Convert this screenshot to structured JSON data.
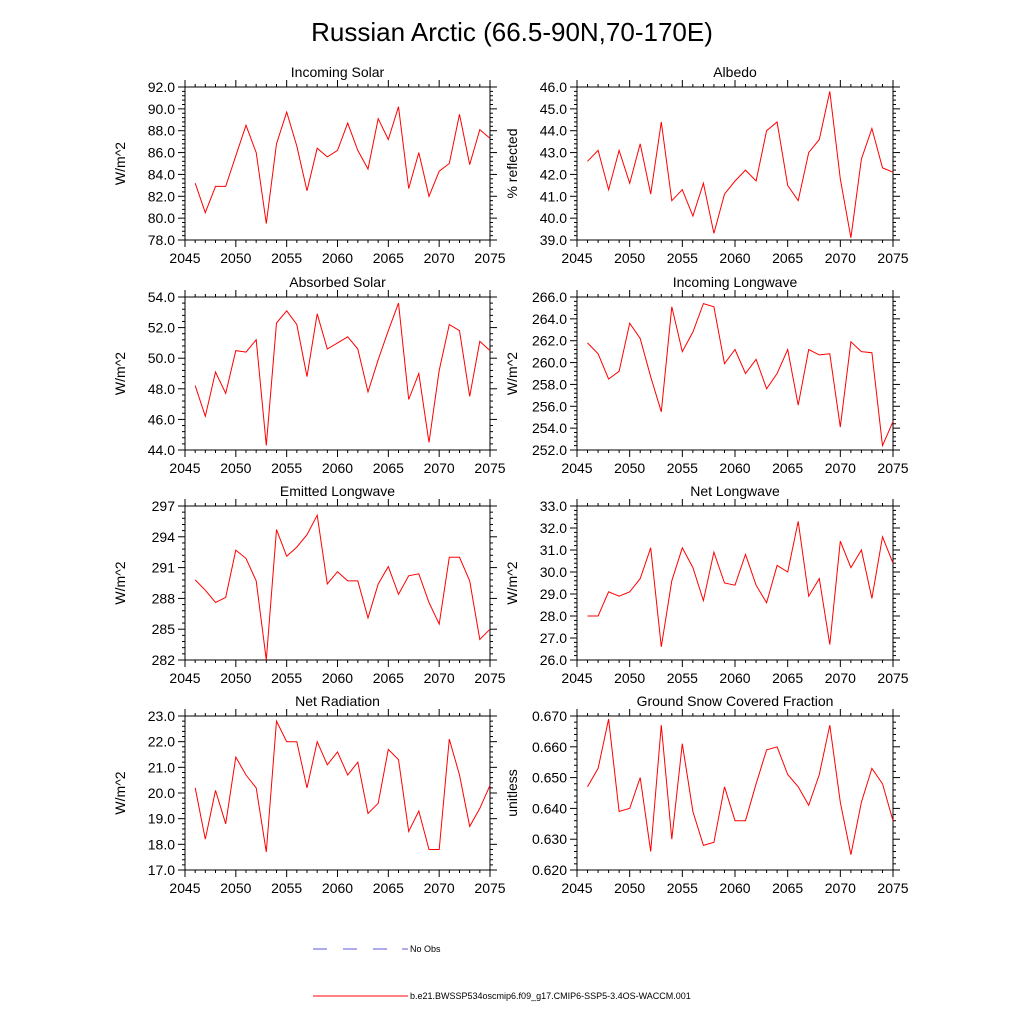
{
  "title": "Russian Arctic (66.5-90N,70-170E)",
  "colors": {
    "series": "#ff0000",
    "no_obs": "#5a5adc"
  },
  "years": [
    2046,
    2047,
    2048,
    2049,
    2050,
    2051,
    2052,
    2053,
    2054,
    2055,
    2056,
    2057,
    2058,
    2059,
    2060,
    2061,
    2062,
    2063,
    2064,
    2065,
    2066,
    2067,
    2068,
    2069,
    2070,
    2071,
    2072,
    2073,
    2074,
    2075
  ],
  "chart_data": [
    {
      "type": "line",
      "title": "Incoming Solar",
      "ylabel": "W/m^2",
      "xlim": [
        2045,
        2075
      ],
      "ylim": [
        78,
        92
      ],
      "yticks": [
        "78.0",
        "80.0",
        "82.0",
        "84.0",
        "86.0",
        "88.0",
        "90.0",
        "92.0"
      ],
      "xticks": [
        "2045",
        "2050",
        "2055",
        "2060",
        "2065",
        "2070",
        "2075"
      ],
      "values": [
        83.2,
        80.5,
        82.9,
        82.9,
        85.7,
        88.5,
        86.0,
        79.5,
        86.8,
        89.7,
        86.6,
        82.5,
        86.4,
        85.6,
        86.2,
        88.7,
        86.2,
        84.5,
        89.1,
        87.2,
        90.2,
        82.7,
        86.0,
        82.0,
        84.3,
        85.0,
        89.5,
        84.9,
        88.1,
        87.3
      ]
    },
    {
      "type": "line",
      "title": "Albedo",
      "ylabel": "% reflected",
      "xlim": [
        2045,
        2075
      ],
      "ylim": [
        39,
        46
      ],
      "yticks": [
        "39.0",
        "40.0",
        "41.0",
        "42.0",
        "43.0",
        "44.0",
        "45.0",
        "46.0"
      ],
      "xticks": [
        "2045",
        "2050",
        "2055",
        "2060",
        "2065",
        "2070",
        "2075"
      ],
      "values": [
        42.6,
        43.1,
        41.3,
        43.1,
        41.6,
        43.4,
        41.1,
        44.4,
        40.8,
        41.3,
        40.1,
        41.6,
        39.3,
        41.1,
        41.7,
        42.2,
        41.7,
        44.0,
        44.4,
        41.5,
        40.8,
        43.0,
        43.6,
        45.8,
        41.8,
        39.1,
        42.7,
        44.1,
        42.3,
        42.1
      ]
    },
    {
      "type": "line",
      "title": "Absorbed Solar",
      "ylabel": "W/m^2",
      "xlim": [
        2045,
        2075
      ],
      "ylim": [
        44,
        54
      ],
      "yticks": [
        "44.0",
        "46.0",
        "48.0",
        "50.0",
        "52.0",
        "54.0"
      ],
      "xticks": [
        "2045",
        "2050",
        "2055",
        "2060",
        "2065",
        "2070",
        "2075"
      ],
      "values": [
        48.2,
        46.2,
        49.1,
        47.7,
        50.5,
        50.4,
        51.2,
        44.3,
        52.3,
        53.1,
        52.2,
        48.8,
        52.9,
        50.6,
        51.0,
        51.4,
        50.6,
        47.8,
        49.9,
        51.8,
        53.6,
        47.3,
        49.0,
        44.5,
        49.2,
        52.2,
        51.8,
        47.5,
        51.1,
        50.5
      ]
    },
    {
      "type": "line",
      "title": "Incoming Longwave",
      "ylabel": "W/m^2",
      "xlim": [
        2045,
        2075
      ],
      "ylim": [
        252,
        266
      ],
      "yticks": [
        "252.0",
        "254.0",
        "256.0",
        "258.0",
        "260.0",
        "262.0",
        "264.0",
        "266.0"
      ],
      "xticks": [
        "2045",
        "2050",
        "2055",
        "2060",
        "2065",
        "2070",
        "2075"
      ],
      "values": [
        261.8,
        260.8,
        258.5,
        259.2,
        263.6,
        262.2,
        258.7,
        255.5,
        265.1,
        261.0,
        262.8,
        265.4,
        265.1,
        259.9,
        261.2,
        259.0,
        260.3,
        257.6,
        259.0,
        261.2,
        256.1,
        261.2,
        260.7,
        260.8,
        254.1,
        261.9,
        261.0,
        260.9,
        252.4,
        254.6
      ]
    },
    {
      "type": "line",
      "title": "Emitted Longwave",
      "ylabel": "W/m^2",
      "xlim": [
        2045,
        2075
      ],
      "ylim": [
        282,
        297
      ],
      "yticks": [
        "282",
        "285",
        "288",
        "291",
        "294",
        "297"
      ],
      "xticks": [
        "2045",
        "2050",
        "2055",
        "2060",
        "2065",
        "2070",
        "2075"
      ],
      "values": [
        289.8,
        288.8,
        287.6,
        288.1,
        292.7,
        291.9,
        289.7,
        282.0,
        294.7,
        292.1,
        293.0,
        294.2,
        296.1,
        289.4,
        290.6,
        289.7,
        289.7,
        286.1,
        289.4,
        291.1,
        288.4,
        290.2,
        290.4,
        287.6,
        285.5,
        292.0,
        292.0,
        289.7,
        284.0,
        285.0
      ]
    },
    {
      "type": "line",
      "title": "Net Longwave",
      "ylabel": "W/m^2",
      "xlim": [
        2045,
        2075
      ],
      "ylim": [
        26,
        33
      ],
      "yticks": [
        "26.0",
        "27.0",
        "28.0",
        "29.0",
        "30.0",
        "31.0",
        "32.0",
        "33.0"
      ],
      "xticks": [
        "2045",
        "2050",
        "2055",
        "2060",
        "2065",
        "2070",
        "2075"
      ],
      "values": [
        28.0,
        28.0,
        29.1,
        28.9,
        29.1,
        29.7,
        31.1,
        26.6,
        29.6,
        31.1,
        30.2,
        28.7,
        30.9,
        29.5,
        29.4,
        30.8,
        29.4,
        28.6,
        30.3,
        30.0,
        32.3,
        28.9,
        29.7,
        26.7,
        31.4,
        30.2,
        31.0,
        28.8,
        31.6,
        30.4
      ]
    },
    {
      "type": "line",
      "title": "Net Radiation",
      "ylabel": "W/m^2",
      "xlim": [
        2045,
        2075
      ],
      "ylim": [
        17,
        23
      ],
      "yticks": [
        "17.0",
        "18.0",
        "19.0",
        "20.0",
        "21.0",
        "22.0",
        "23.0"
      ],
      "xticks": [
        "2045",
        "2050",
        "2055",
        "2060",
        "2065",
        "2070",
        "2075"
      ],
      "values": [
        20.2,
        18.2,
        20.1,
        18.8,
        21.4,
        20.7,
        20.2,
        17.7,
        22.8,
        22.0,
        22.0,
        20.2,
        22.0,
        21.1,
        21.6,
        20.7,
        21.2,
        19.2,
        19.6,
        21.7,
        21.3,
        18.5,
        19.3,
        17.8,
        17.8,
        22.1,
        20.7,
        18.7,
        19.4,
        20.3
      ]
    },
    {
      "type": "line",
      "title": "Ground Snow Covered Fraction",
      "ylabel": "unitless",
      "xlim": [
        2045,
        2075
      ],
      "ylim": [
        0.62,
        0.67
      ],
      "yticks": [
        "0.620",
        "0.630",
        "0.640",
        "0.650",
        "0.660",
        "0.670"
      ],
      "xticks": [
        "2045",
        "2050",
        "2055",
        "2060",
        "2065",
        "2070",
        "2075"
      ],
      "values": [
        0.647,
        0.653,
        0.669,
        0.639,
        0.64,
        0.65,
        0.626,
        0.667,
        0.63,
        0.661,
        0.639,
        0.628,
        0.629,
        0.647,
        0.636,
        0.636,
        0.648,
        0.659,
        0.66,
        0.651,
        0.647,
        0.641,
        0.651,
        0.667,
        0.642,
        0.625,
        0.642,
        0.653,
        0.648,
        0.636
      ]
    }
  ],
  "legend": {
    "no_obs_label": "No Obs",
    "model_label": "b.e21.BWSSP534oscmip6.f09_g17.CMIP6-SSP5-3.4OS-WACCM.001"
  }
}
